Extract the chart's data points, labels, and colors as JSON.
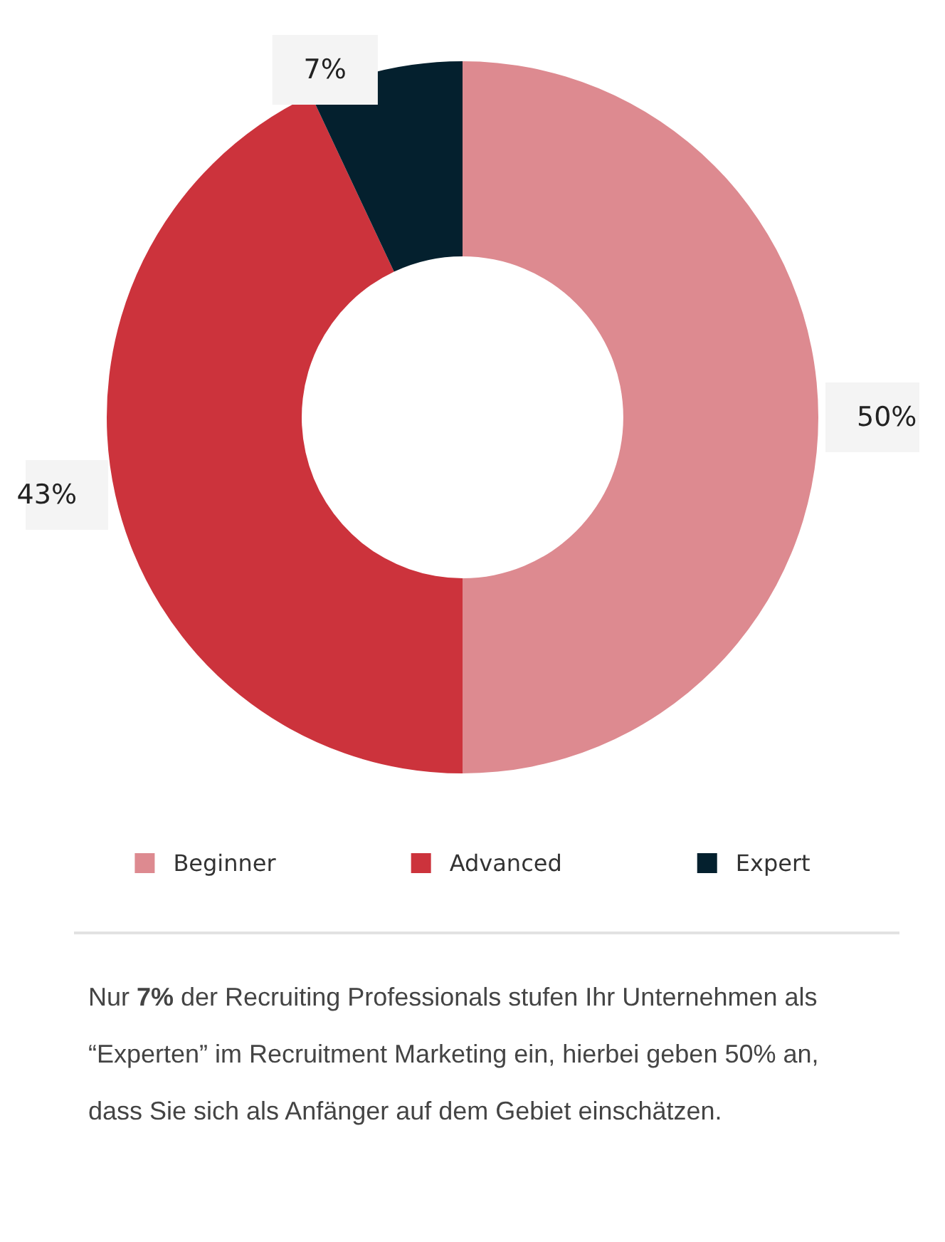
{
  "chart_data": {
    "type": "donut",
    "categories": [
      "Beginner",
      "Advanced",
      "Expert"
    ],
    "values": [
      50,
      43,
      7
    ],
    "colors": [
      "#dd8a90",
      "#cc333c",
      "#04202e"
    ],
    "value_labels": [
      "50%",
      "43%",
      "7%"
    ],
    "legend": "bottom",
    "annotations": [
      "Nur 7% der Recruiting Professionals stufen Ihr Unternehmen als “Experten” im Recruitment Marketing ein, hierbei geben 50% an, dass Sie sich als Anfänger auf dem Gebiet einschätzen."
    ]
  }
}
